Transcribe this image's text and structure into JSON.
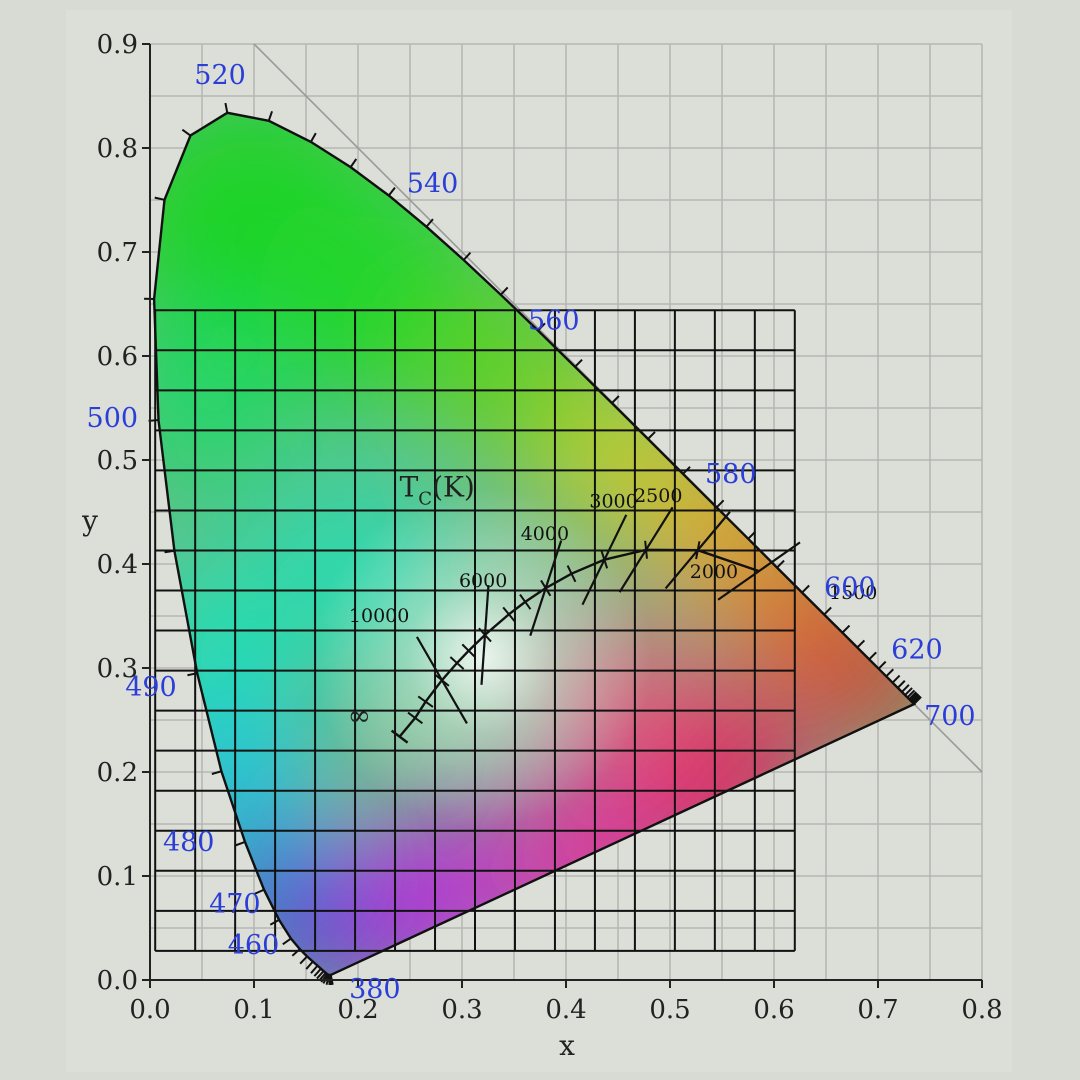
{
  "chart_data": {
    "type": "scatter",
    "title": "",
    "xlabel": "x",
    "ylabel": "y",
    "xlim": [
      0.0,
      0.8
    ],
    "ylim": [
      0.0,
      0.9
    ],
    "x_ticks": [
      "0.0",
      "0.1",
      "0.2",
      "0.3",
      "0.4",
      "0.5",
      "0.6",
      "0.7",
      "0.8"
    ],
    "y_ticks": [
      "0.0",
      "0.1",
      "0.2",
      "0.3",
      "0.4",
      "0.5",
      "0.6",
      "0.7",
      "0.8",
      "0.9"
    ],
    "grid": true,
    "spectral_locus": [
      [
        0.1741,
        0.005
      ],
      [
        0.1738,
        0.0049
      ],
      [
        0.1736,
        0.0049
      ],
      [
        0.173,
        0.0048
      ],
      [
        0.1726,
        0.0048
      ],
      [
        0.1721,
        0.0048
      ],
      [
        0.1714,
        0.0051
      ],
      [
        0.1703,
        0.0058
      ],
      [
        0.1689,
        0.0069
      ],
      [
        0.1669,
        0.0086
      ],
      [
        0.1644,
        0.0109
      ],
      [
        0.1611,
        0.0138
      ],
      [
        0.1566,
        0.0177
      ],
      [
        0.151,
        0.0227
      ],
      [
        0.144,
        0.0297
      ],
      [
        0.1355,
        0.0399
      ],
      [
        0.1241,
        0.0578
      ],
      [
        0.1096,
        0.0868
      ],
      [
        0.0913,
        0.1327
      ],
      [
        0.0687,
        0.2007
      ],
      [
        0.0454,
        0.295
      ],
      [
        0.0235,
        0.4127
      ],
      [
        0.0082,
        0.5384
      ],
      [
        0.0039,
        0.6548
      ],
      [
        0.0139,
        0.7502
      ],
      [
        0.0389,
        0.812
      ],
      [
        0.0743,
        0.8338
      ],
      [
        0.1142,
        0.8262
      ],
      [
        0.1547,
        0.8059
      ],
      [
        0.1929,
        0.7816
      ],
      [
        0.2296,
        0.7543
      ],
      [
        0.2658,
        0.7243
      ],
      [
        0.3016,
        0.6923
      ],
      [
        0.3373,
        0.6589
      ],
      [
        0.3731,
        0.6245
      ],
      [
        0.4087,
        0.5896
      ],
      [
        0.4441,
        0.5547
      ],
      [
        0.4788,
        0.5202
      ],
      [
        0.5125,
        0.4866
      ],
      [
        0.5448,
        0.4544
      ],
      [
        0.5752,
        0.4242
      ],
      [
        0.6029,
        0.3965
      ],
      [
        0.627,
        0.3725
      ],
      [
        0.6482,
        0.3514
      ],
      [
        0.6658,
        0.334
      ],
      [
        0.6801,
        0.3197
      ],
      [
        0.6915,
        0.3083
      ],
      [
        0.7006,
        0.2993
      ],
      [
        0.7079,
        0.292
      ],
      [
        0.714,
        0.2859
      ],
      [
        0.719,
        0.2809
      ],
      [
        0.723,
        0.277
      ],
      [
        0.726,
        0.274
      ],
      [
        0.7283,
        0.2717
      ],
      [
        0.73,
        0.27
      ],
      [
        0.7311,
        0.2689
      ],
      [
        0.732,
        0.268
      ],
      [
        0.7327,
        0.2673
      ],
      [
        0.7334,
        0.2666
      ],
      [
        0.734,
        0.266
      ],
      [
        0.7344,
        0.2656
      ],
      [
        0.7346,
        0.2654
      ],
      [
        0.7347,
        0.2653
      ]
    ],
    "wavelength_labels": [
      {
        "text": "380",
        "x": 0.1741,
        "y": 0.005
      },
      {
        "text": "460",
        "x": 0.144,
        "y": 0.0297
      },
      {
        "text": "470",
        "x": 0.1241,
        "y": 0.0578
      },
      {
        "text": "480",
        "x": 0.0913,
        "y": 0.1327
      },
      {
        "text": "490",
        "x": 0.0454,
        "y": 0.295
      },
      {
        "text": "500",
        "x": 0.0082,
        "y": 0.5384
      },
      {
        "text": "520",
        "x": 0.0743,
        "y": 0.8338
      },
      {
        "text": "540",
        "x": 0.2296,
        "y": 0.7543
      },
      {
        "text": "560",
        "x": 0.3731,
        "y": 0.6245
      },
      {
        "text": "580",
        "x": 0.5125,
        "y": 0.4866
      },
      {
        "text": "600",
        "x": 0.627,
        "y": 0.3725
      },
      {
        "text": "620",
        "x": 0.6915,
        "y": 0.3083
      },
      {
        "text": "700",
        "x": 0.7347,
        "y": 0.2653
      }
    ],
    "planckian_locus": [
      [
        0.5856,
        0.3932
      ],
      [
        0.5267,
        0.4133
      ],
      [
        0.477,
        0.4137
      ],
      [
        0.4369,
        0.4041
      ],
      [
        0.4053,
        0.3907
      ],
      [
        0.3805,
        0.3768
      ],
      [
        0.3608,
        0.3636
      ],
      [
        0.3451,
        0.3516
      ],
      [
        0.3221,
        0.3318
      ],
      [
        0.3064,
        0.3166
      ],
      [
        0.2952,
        0.3048
      ],
      [
        0.2807,
        0.2883
      ],
      [
        0.265,
        0.2676
      ],
      [
        0.255,
        0.252
      ],
      [
        0.24,
        0.234
      ]
    ],
    "isotherms": [
      {
        "label": "1500",
        "cx": 0.5856,
        "cy": 0.3932,
        "angle_deg": 35
      },
      {
        "label": "2000",
        "cx": 0.5267,
        "cy": 0.4133,
        "angle_deg": 50
      },
      {
        "label": "2500",
        "cx": 0.477,
        "cy": 0.4137,
        "angle_deg": 58
      },
      {
        "label": "3000",
        "cx": 0.4369,
        "cy": 0.4041,
        "angle_deg": 64
      },
      {
        "label": "4000",
        "cx": 0.3805,
        "cy": 0.3768,
        "angle_deg": 72
      },
      {
        "label": "6000",
        "cx": 0.3221,
        "cy": 0.3318,
        "angle_deg": 86
      },
      {
        "label": "10000",
        "cx": 0.2807,
        "cy": 0.2883,
        "angle_deg": 120
      }
    ],
    "annotations": [
      {
        "text": "T",
        "sub": "C",
        "after": "(K)"
      },
      {
        "text": "∞"
      }
    ]
  }
}
